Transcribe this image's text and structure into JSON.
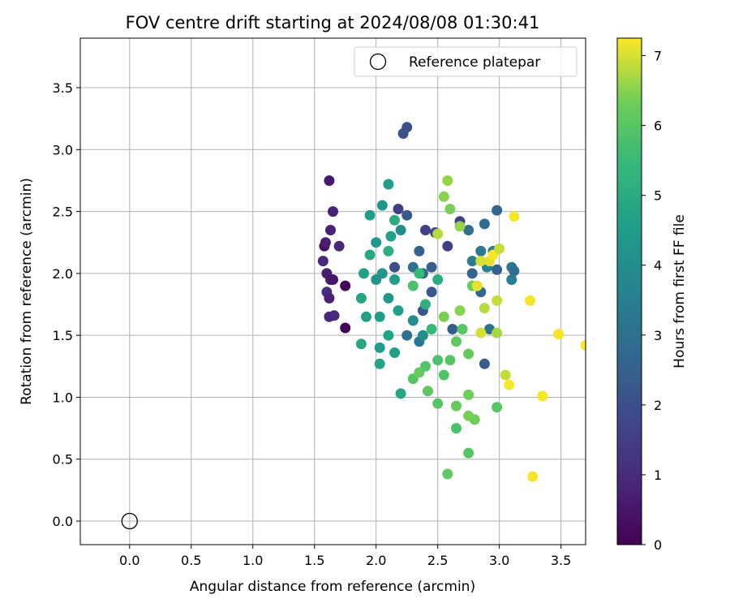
{
  "chart_data": {
    "type": "scatter",
    "title": "FOV centre drift starting at 2024/08/08 01:30:41",
    "xlabel": "Angular distance from reference (arcmin)",
    "ylabel": "Rotation from reference (arcmin)",
    "xlim": [
      -0.4,
      3.7
    ],
    "ylim": [
      -0.19,
      3.9
    ],
    "xticks": [
      "0.0",
      "0.5",
      "1.0",
      "1.5",
      "2.0",
      "2.5",
      "3.0",
      "3.5"
    ],
    "yticks": [
      "0.0",
      "0.5",
      "1.0",
      "1.5",
      "2.0",
      "2.5",
      "3.0",
      "3.5"
    ],
    "grid": true,
    "legend": {
      "placement": "top-right",
      "entries": [
        "Reference platepar"
      ]
    },
    "reference_point": {
      "x": 0.0,
      "y": 0.0,
      "label": "Reference platepar"
    },
    "colorbar": {
      "label": "Hours from first FF file",
      "colormap": "viridis",
      "range": [
        0,
        7.25
      ],
      "ticks": [
        "0",
        "1",
        "2",
        "3",
        "4",
        "5",
        "6",
        "7"
      ]
    },
    "series": [
      {
        "color_by": "hours",
        "points": [
          [
            1.75,
            1.56,
            0.05
          ],
          [
            1.75,
            1.9,
            0.1
          ],
          [
            1.58,
            2.22,
            0.4
          ],
          [
            1.62,
            2.75,
            0.6
          ],
          [
            1.65,
            2.5,
            0.8
          ],
          [
            1.6,
            2.0,
            0.7
          ],
          [
            1.63,
            2.35,
            0.75
          ],
          [
            1.62,
            1.65,
            0.9
          ],
          [
            1.66,
            1.66,
            1.0
          ],
          [
            1.6,
            1.85,
            1.1
          ],
          [
            1.7,
            2.22,
            0.9
          ],
          [
            1.57,
            2.1,
            1.0
          ],
          [
            1.63,
            1.95,
            0.6
          ],
          [
            1.59,
            2.25,
            0.7
          ],
          [
            1.62,
            1.8,
            0.8
          ],
          [
            1.65,
            1.95,
            0.5
          ],
          [
            2.25,
            3.18,
            2.0
          ],
          [
            2.22,
            3.13,
            2.1
          ],
          [
            2.18,
            2.52,
            1.5
          ],
          [
            2.25,
            2.47,
            2.3
          ],
          [
            2.4,
            2.35,
            1.6
          ],
          [
            2.48,
            2.33,
            1.7
          ],
          [
            2.68,
            2.42,
            1.5
          ],
          [
            2.58,
            2.22,
            1.6
          ],
          [
            2.35,
            2.18,
            2.5
          ],
          [
            2.38,
            2.0,
            2.8
          ],
          [
            2.3,
            2.05,
            3.0
          ],
          [
            2.45,
            2.05,
            2.4
          ],
          [
            2.15,
            2.05,
            2.0
          ],
          [
            2.38,
            1.7,
            2.2
          ],
          [
            2.45,
            1.85,
            2.3
          ],
          [
            2.98,
            2.51,
            2.7
          ],
          [
            2.88,
            2.4,
            2.9
          ],
          [
            2.75,
            2.35,
            3.0
          ],
          [
            2.85,
            2.18,
            3.3
          ],
          [
            2.95,
            2.18,
            3.4
          ],
          [
            3.1,
            2.05,
            3.3
          ],
          [
            2.78,
            2.1,
            3.5
          ],
          [
            2.9,
            2.05,
            3.6
          ],
          [
            3.1,
            1.95,
            3.5
          ],
          [
            2.98,
            2.03,
            2.5
          ],
          [
            2.78,
            2.0,
            2.6
          ],
          [
            3.12,
            2.02,
            2.9
          ],
          [
            2.62,
            1.55,
            2.4
          ],
          [
            2.88,
            1.27,
            2.4
          ],
          [
            2.92,
            1.55,
            3.1
          ],
          [
            2.85,
            1.85,
            2.7
          ],
          [
            2.25,
            1.5,
            3.0
          ],
          [
            2.35,
            1.45,
            3.2
          ],
          [
            2.05,
            2.55,
            4.3
          ],
          [
            2.1,
            2.72,
            4.5
          ],
          [
            1.95,
            2.47,
            4.5
          ],
          [
            2.15,
            2.43,
            5.0
          ],
          [
            2.0,
            2.25,
            4.4
          ],
          [
            2.12,
            2.3,
            4.6
          ],
          [
            2.2,
            2.35,
            4.0
          ],
          [
            1.95,
            2.15,
            4.9
          ],
          [
            2.1,
            2.18,
            5.1
          ],
          [
            2.05,
            2.0,
            4.3
          ],
          [
            2.0,
            1.95,
            4.2
          ],
          [
            1.9,
            2.0,
            4.6
          ],
          [
            2.15,
            1.95,
            4.5
          ],
          [
            2.1,
            1.8,
            4.4
          ],
          [
            2.18,
            1.7,
            4.6
          ],
          [
            2.03,
            1.65,
            4.5
          ],
          [
            2.1,
            1.5,
            4.7
          ],
          [
            1.88,
            1.8,
            4.8
          ],
          [
            1.92,
            1.65,
            4.6
          ],
          [
            1.88,
            1.43,
            4.9
          ],
          [
            2.03,
            1.4,
            4.5
          ],
          [
            2.15,
            1.36,
            4.6
          ],
          [
            2.03,
            1.27,
            4.7
          ],
          [
            2.2,
            1.03,
            4.8
          ],
          [
            2.3,
            1.62,
            4.0
          ],
          [
            2.38,
            1.5,
            4.0
          ],
          [
            2.4,
            1.75,
            5.2
          ],
          [
            2.5,
            1.95,
            5.0
          ],
          [
            2.35,
            2.0,
            5.5
          ],
          [
            2.3,
            1.9,
            5.8
          ],
          [
            2.45,
            1.55,
            5.5
          ],
          [
            2.5,
            1.3,
            5.8
          ],
          [
            2.4,
            1.25,
            5.9
          ],
          [
            2.3,
            1.15,
            6.0
          ],
          [
            2.42,
            1.05,
            6.1
          ],
          [
            2.5,
            0.95,
            6.0
          ],
          [
            2.35,
            1.2,
            6.2
          ],
          [
            2.55,
            1.18,
            5.9
          ],
          [
            2.6,
            1.3,
            6.0
          ],
          [
            2.65,
            1.45,
            6.1
          ],
          [
            2.7,
            1.55,
            6.0
          ],
          [
            2.75,
            1.35,
            6.2
          ],
          [
            2.65,
            0.93,
            6.2
          ],
          [
            2.75,
            1.02,
            6.3
          ],
          [
            2.65,
            0.75,
            5.8
          ],
          [
            2.75,
            0.55,
            6.0
          ],
          [
            2.58,
            0.38,
            6.1
          ],
          [
            2.8,
            0.82,
            6.3
          ],
          [
            2.75,
            0.85,
            6.4
          ],
          [
            2.98,
            0.92,
            6.0
          ],
          [
            2.55,
            1.65,
            6.4
          ],
          [
            2.68,
            1.7,
            6.5
          ],
          [
            2.78,
            1.9,
            6.3
          ],
          [
            2.68,
            2.38,
            6.6
          ],
          [
            2.6,
            2.52,
            6.4
          ],
          [
            2.55,
            2.62,
            6.5
          ],
          [
            2.58,
            2.75,
            6.6
          ],
          [
            2.88,
            1.72,
            6.8
          ],
          [
            2.98,
            1.78,
            6.9
          ],
          [
            2.98,
            1.52,
            6.7
          ],
          [
            2.85,
            1.52,
            7.0
          ],
          [
            2.92,
            2.1,
            7.1
          ],
          [
            2.95,
            2.15,
            7.2
          ],
          [
            3.0,
            2.2,
            6.9
          ],
          [
            2.85,
            2.1,
            7.0
          ],
          [
            2.82,
            1.9,
            7.1
          ],
          [
            3.05,
            1.18,
            6.9
          ],
          [
            3.08,
            1.1,
            7.2
          ],
          [
            3.12,
            2.46,
            7.2
          ],
          [
            3.25,
            1.78,
            7.2
          ],
          [
            3.35,
            1.01,
            7.2
          ],
          [
            3.48,
            1.51,
            7.2
          ],
          [
            3.27,
            0.36,
            7.2
          ],
          [
            3.7,
            1.42,
            7.25
          ],
          [
            2.5,
            2.32,
            6.8
          ]
        ]
      }
    ]
  }
}
